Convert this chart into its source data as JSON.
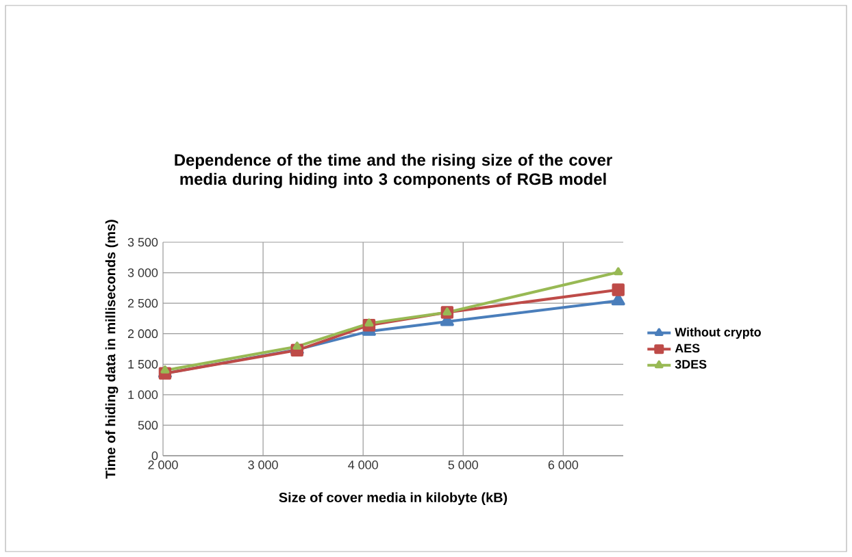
{
  "chart_data": {
    "type": "line",
    "title": "Dependence of the time and the rising size of the cover media during hiding into 3 components of RGB model",
    "xlabel": "Size of cover media in kilobyte (kB)",
    "ylabel": "Time of hiding data in milliseconds (ms)",
    "x": [
      2020,
      3340,
      4060,
      4840,
      6550
    ],
    "series": [
      {
        "name": "Without crypto",
        "color": "#4a7ebb",
        "marker": "triangle",
        "values": [
          1350,
          1740,
          2040,
          2200,
          2540
        ]
      },
      {
        "name": "AES",
        "color": "#be4b48",
        "marker": "square",
        "values": [
          1350,
          1730,
          2140,
          2350,
          2720
        ]
      },
      {
        "name": "3DES",
        "color": "#98b954",
        "marker": "triangle",
        "values": [
          1400,
          1790,
          2170,
          2350,
          3010
        ]
      }
    ],
    "xlim": [
      2000,
      6600
    ],
    "xticks": [
      {
        "value": 2000,
        "label": "2 000"
      },
      {
        "value": 3000,
        "label": "3 000"
      },
      {
        "value": 4000,
        "label": "4 000"
      },
      {
        "value": 5000,
        "label": "5 000"
      },
      {
        "value": 6000,
        "label": "6 000"
      }
    ],
    "ylim": [
      0,
      3500
    ],
    "yticks": [
      0,
      500,
      {
        "value": 1000,
        "label": "1 000"
      },
      {
        "value": 1500,
        "label": "1 500"
      },
      {
        "value": 2000,
        "label": "2 000"
      },
      {
        "value": 2500,
        "label": "2 500"
      },
      {
        "value": 3000,
        "label": "3 000"
      },
      {
        "value": 3500,
        "label": "3 500"
      }
    ],
    "grid": true,
    "legend": "right",
    "line_style": "solid"
  }
}
